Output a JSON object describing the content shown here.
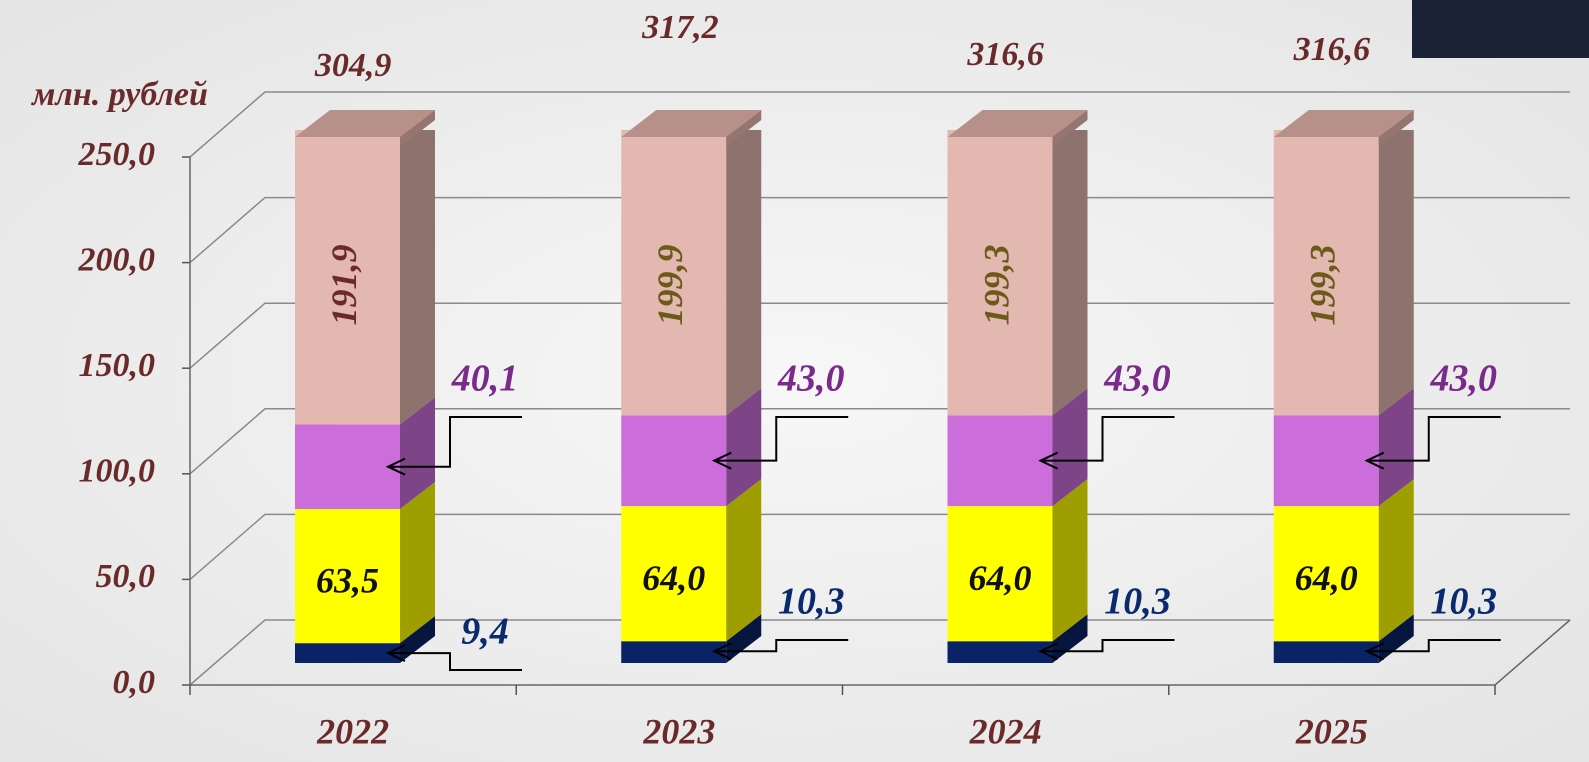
{
  "chart_data": {
    "type": "bar3d-stacked",
    "y_axis_label": "млн. рублей",
    "categories": [
      "2022",
      "2023",
      "2024",
      "2025"
    ],
    "series": [
      {
        "color": "#0a2366",
        "values": [
          9.4,
          10.3,
          10.3,
          10.3
        ],
        "value_labels": [
          "9,4",
          "10,3",
          "10,3",
          "10,3"
        ]
      },
      {
        "color": "#ffff00",
        "values": [
          63.5,
          64.0,
          64.0,
          64.0
        ],
        "value_labels": [
          "63,5",
          "64,0",
          "64,0",
          "64,0"
        ]
      },
      {
        "color": "#cc6ddc",
        "values": [
          40.1,
          43.0,
          43.0,
          43.0
        ],
        "value_labels": [
          "40,1",
          "43,0",
          "43,0",
          "43,0"
        ]
      },
      {
        "color": "#e3b8b0",
        "values": [
          191.9,
          199.9,
          199.3,
          199.3
        ],
        "value_labels": [
          "191,9",
          "199,9",
          "199,3",
          "199,3"
        ]
      }
    ],
    "totals": [
      304.9,
      317.2,
      316.6,
      316.6
    ],
    "total_labels": [
      "304,9",
      "317,2",
      "316,6",
      "316,6"
    ],
    "ylim": [
      0,
      250
    ],
    "yticks": [
      {
        "value": 0,
        "label": "0,0"
      },
      {
        "value": 50,
        "label": "50,0"
      },
      {
        "value": 100,
        "label": "100,0"
      },
      {
        "value": 150,
        "label": "150,0"
      },
      {
        "value": 200,
        "label": "200,0"
      },
      {
        "value": 250,
        "label": "250,0"
      }
    ],
    "grid": true
  }
}
